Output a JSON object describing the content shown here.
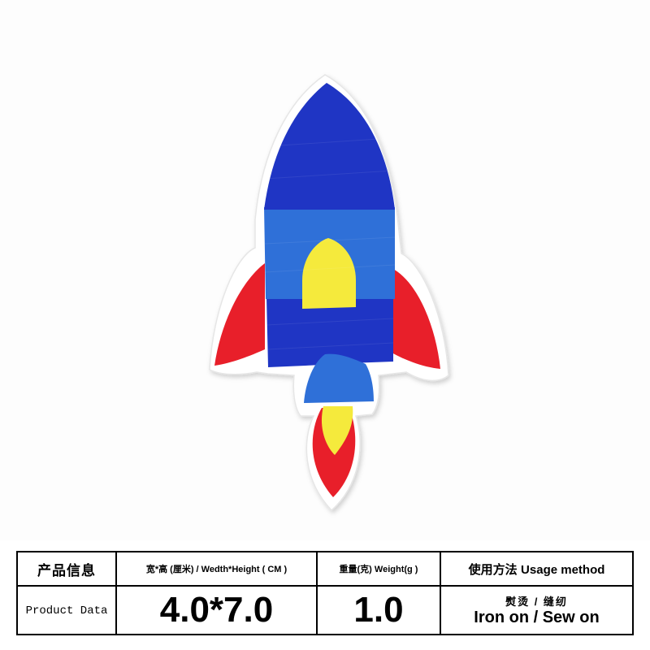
{
  "product_table": {
    "title_zh": "产品信息",
    "title_en": "Product Data",
    "size_header": "宽*高 (厘米) / Wedth*Height ( CM )",
    "size_value": "4.0*7.0",
    "weight_header": "重量(克) Weight(g )",
    "weight_value": "1.0",
    "usage_header_zh": "使用方法",
    "usage_header_en": "Usage method",
    "usage_zh": "熨烫 / 缝纫",
    "usage_en": "Iron on / Sew on"
  },
  "colors": {
    "rocket_blue_dark": "#1f35c4",
    "rocket_blue_light": "#2f70d8",
    "window_yellow": "#f5ea3c",
    "fin_red": "#e81f2a",
    "patch_border": "#ffffff"
  }
}
